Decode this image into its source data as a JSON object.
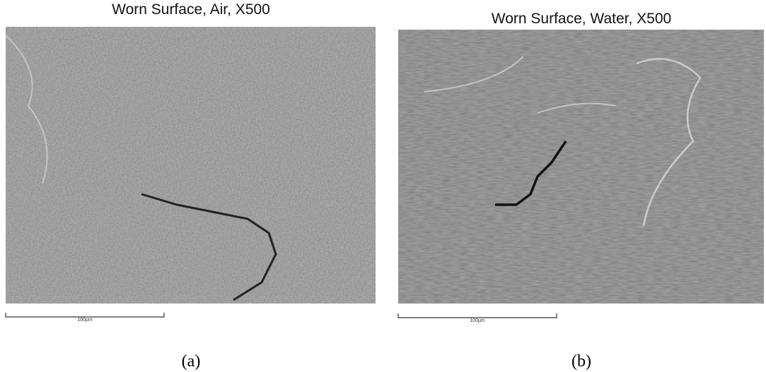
{
  "panels": [
    {
      "title": "Worn Surface, Air, X500",
      "scale_label": "100µm",
      "caption": "(a)"
    },
    {
      "title": "Worn Surface, Water, X500",
      "scale_label": "100µm",
      "caption": "(b)"
    }
  ]
}
